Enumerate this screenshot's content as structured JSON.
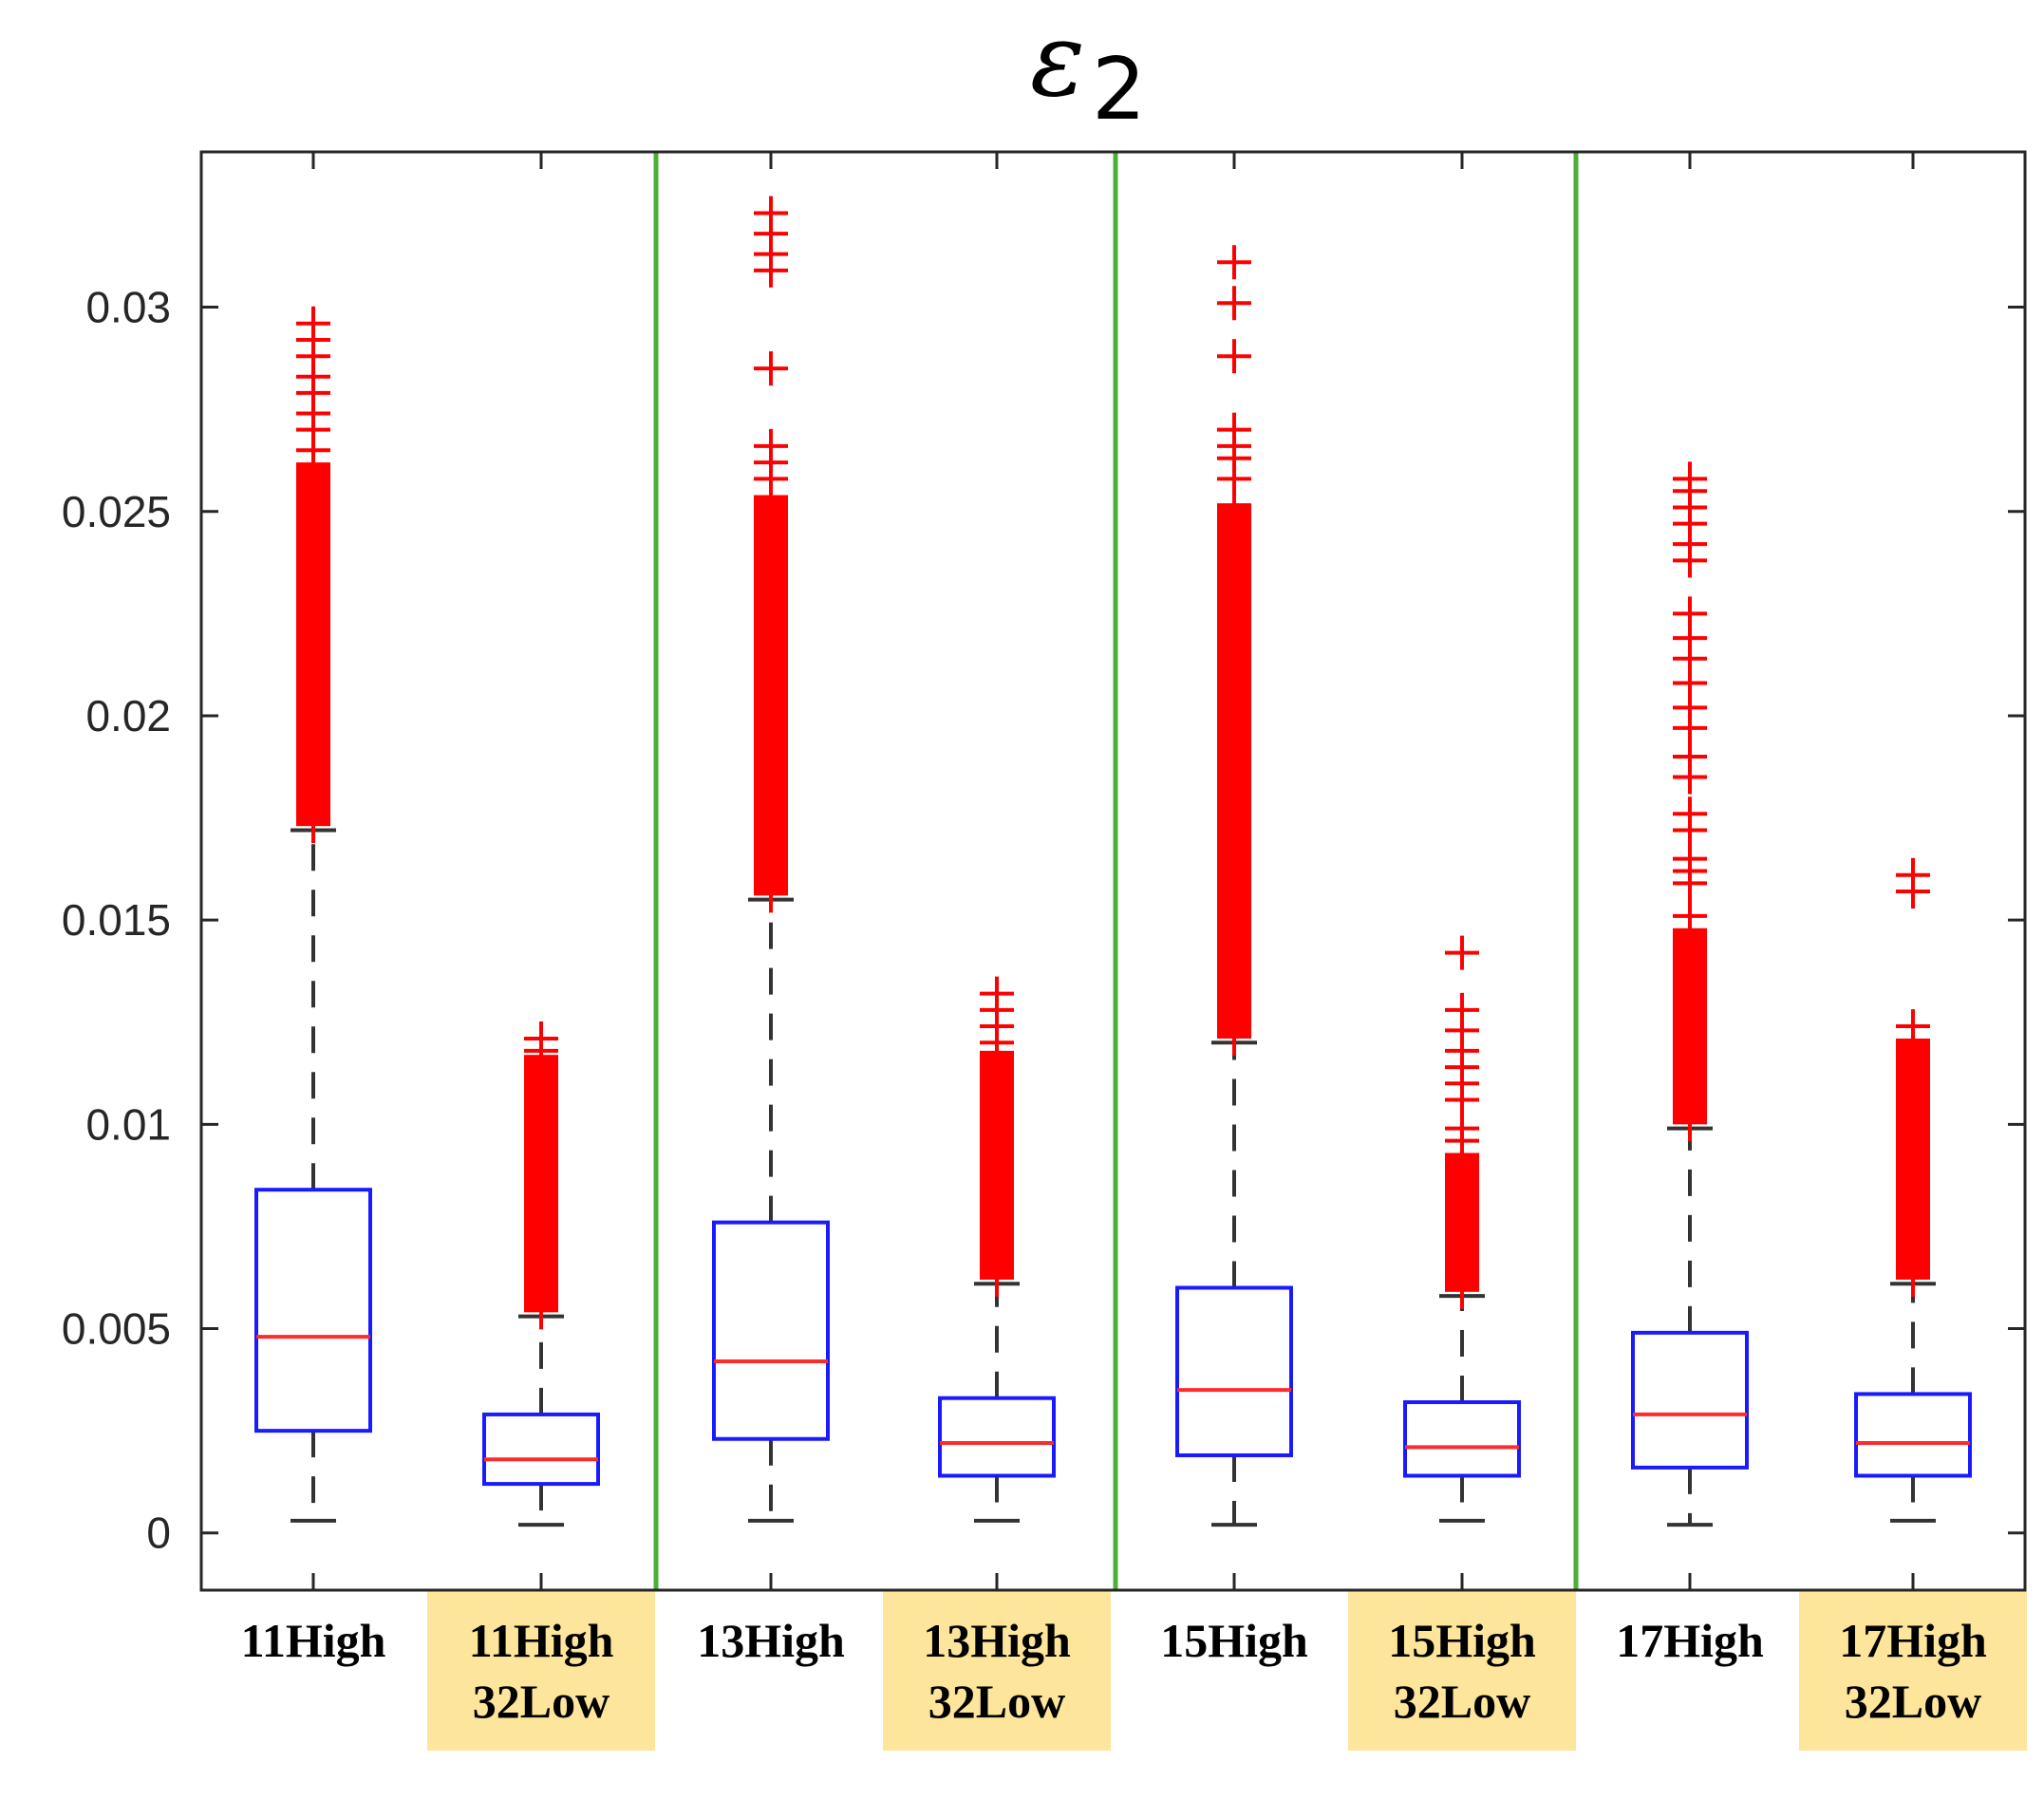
{
  "chart_data": {
    "type": "box",
    "title": "ε",
    "title_subscript": "2",
    "xlabel": "",
    "ylabel": "",
    "ylim": [
      -0.0014,
      0.0338
    ],
    "yticks": [
      0,
      0.005,
      0.01,
      0.015,
      0.02,
      0.025,
      0.03
    ],
    "ytick_labels": [
      "0",
      "0.005",
      "0.01",
      "0.015",
      "0.02",
      "0.025",
      "0.03"
    ],
    "grid": false,
    "separators_after": [
      1,
      3,
      5
    ],
    "categories": [
      {
        "lines": [
          "11High"
        ],
        "highlight": false
      },
      {
        "lines": [
          "11High",
          "32Low"
        ],
        "highlight": true
      },
      {
        "lines": [
          "13High"
        ],
        "highlight": false
      },
      {
        "lines": [
          "13High",
          "32Low"
        ],
        "highlight": true
      },
      {
        "lines": [
          "15High"
        ],
        "highlight": false
      },
      {
        "lines": [
          "15High",
          "32Low"
        ],
        "highlight": true
      },
      {
        "lines": [
          "17High"
        ],
        "highlight": false
      },
      {
        "lines": [
          "17High",
          "32Low"
        ],
        "highlight": true
      }
    ],
    "boxes": [
      {
        "whisker_low": 0.0003,
        "q1": 0.0025,
        "median": 0.0048,
        "q3": 0.0084,
        "whisker_high": 0.0172,
        "outliers_dense": [
          0.0173,
          0.0262
        ],
        "outliers": [
          0.0265,
          0.027,
          0.0274,
          0.0279,
          0.0283,
          0.0288,
          0.0292,
          0.0296
        ]
      },
      {
        "whisker_low": 0.0002,
        "q1": 0.0012,
        "median": 0.0018,
        "q3": 0.0029,
        "whisker_high": 0.0053,
        "outliers_dense": [
          0.0054,
          0.0117
        ],
        "outliers": [
          0.0118,
          0.0121
        ]
      },
      {
        "whisker_low": 0.0003,
        "q1": 0.0023,
        "median": 0.0042,
        "q3": 0.0076,
        "whisker_high": 0.0155,
        "outliers_dense": [
          0.0156,
          0.0254
        ],
        "outliers": [
          0.0258,
          0.0262,
          0.0266,
          0.0285,
          0.0309,
          0.0313,
          0.0318,
          0.0323
        ]
      },
      {
        "whisker_low": 0.0003,
        "q1": 0.0014,
        "median": 0.0022,
        "q3": 0.0033,
        "whisker_high": 0.0061,
        "outliers_dense": [
          0.0062,
          0.0118
        ],
        "outliers": [
          0.012,
          0.0124,
          0.0128,
          0.0132
        ]
      },
      {
        "whisker_low": 0.0002,
        "q1": 0.0019,
        "median": 0.0035,
        "q3": 0.006,
        "whisker_high": 0.012,
        "outliers_dense": [
          0.0121,
          0.0252
        ],
        "outliers": [
          0.0258,
          0.0263,
          0.0266,
          0.027,
          0.0288,
          0.0301,
          0.0311
        ]
      },
      {
        "whisker_low": 0.0003,
        "q1": 0.0014,
        "median": 0.0021,
        "q3": 0.0032,
        "whisker_high": 0.0058,
        "outliers_dense": [
          0.0059,
          0.0093
        ],
        "outliers": [
          0.0096,
          0.0099,
          0.0106,
          0.011,
          0.0114,
          0.0118,
          0.0123,
          0.0128,
          0.0142
        ]
      },
      {
        "whisker_low": 0.0002,
        "q1": 0.0016,
        "median": 0.0029,
        "q3": 0.0049,
        "whisker_high": 0.0099,
        "outliers_dense": [
          0.01,
          0.0148
        ],
        "outliers": [
          0.0151,
          0.0159,
          0.0162,
          0.0165,
          0.0172,
          0.0176,
          0.0185,
          0.019,
          0.0197,
          0.0202,
          0.0208,
          0.0214,
          0.0219,
          0.0225,
          0.0238,
          0.0242,
          0.0247,
          0.0251,
          0.0255,
          0.0258
        ]
      },
      {
        "whisker_low": 0.0003,
        "q1": 0.0014,
        "median": 0.0022,
        "q3": 0.0034,
        "whisker_high": 0.0061,
        "outliers_dense": [
          0.0062,
          0.0121
        ],
        "outliers": [
          0.0124,
          0.0157,
          0.0161
        ]
      }
    ]
  },
  "colors": {
    "box": "#1a1aff",
    "median": "#ff2a2a",
    "whisker": "#333333",
    "outlier": "#ff0000",
    "separator": "#4caf35",
    "highlight": "#fde59b",
    "axis": "#262626"
  }
}
